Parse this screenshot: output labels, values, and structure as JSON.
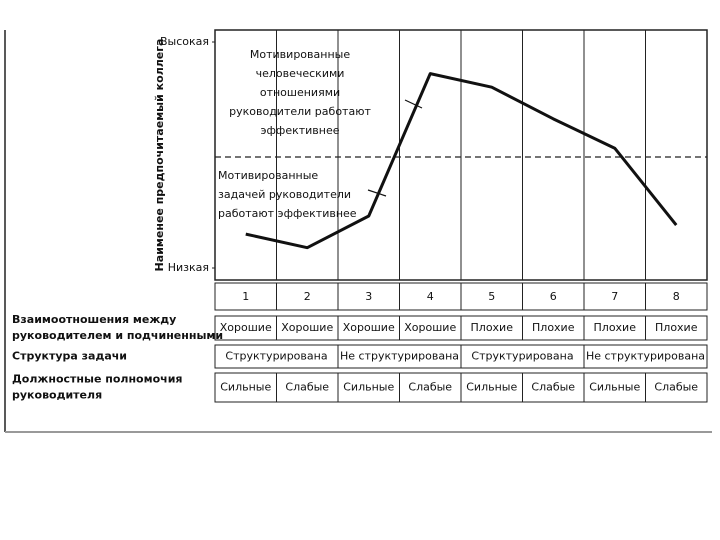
{
  "chart_data": {
    "type": "line",
    "y_label": "Наименее предпочитаемый коллега",
    "categories": [
      "1",
      "2",
      "3",
      "4",
      "5",
      "6",
      "7",
      "8"
    ],
    "values": [
      15,
      9,
      23,
      86,
      80,
      66,
      53,
      19
    ],
    "color": "#111111",
    "ylim": [
      0,
      100
    ],
    "yticks": [
      {
        "value": 0,
        "label": "Низкая"
      },
      {
        "value": 100,
        "label": "Высокая"
      }
    ],
    "annotations": [
      {
        "lines": [
          "Мотивированные",
          "человеческими",
          "отношениями",
          "руководители работают",
          "эффективнее"
        ]
      },
      {
        "lines": [
          "Мотивированные",
          "задачей руководители",
          "работают эффективнее"
        ]
      }
    ],
    "table": {
      "rows": [
        {
          "label": [
            "Взаимоотношения между",
            "руководителем и подчиненными"
          ],
          "cells": [
            "Хорошие",
            "Хорошие",
            "Хорошие",
            "Хорошие",
            "Плохие",
            "Плохие",
            "Плохие",
            "Плохие"
          ]
        },
        {
          "label": [
            "Структура задачи"
          ],
          "cells": [
            "Структурирована",
            "Не структурирована",
            "Структурирована",
            "Не структурирована"
          ]
        },
        {
          "label": [
            "Должностные полномочия",
            "руководителя"
          ],
          "cells": [
            "Сильные",
            "Слабые",
            "Сильные",
            "Слабые",
            "Сильные",
            "Слабые",
            "Сильные",
            "Слабые"
          ]
        }
      ]
    }
  }
}
